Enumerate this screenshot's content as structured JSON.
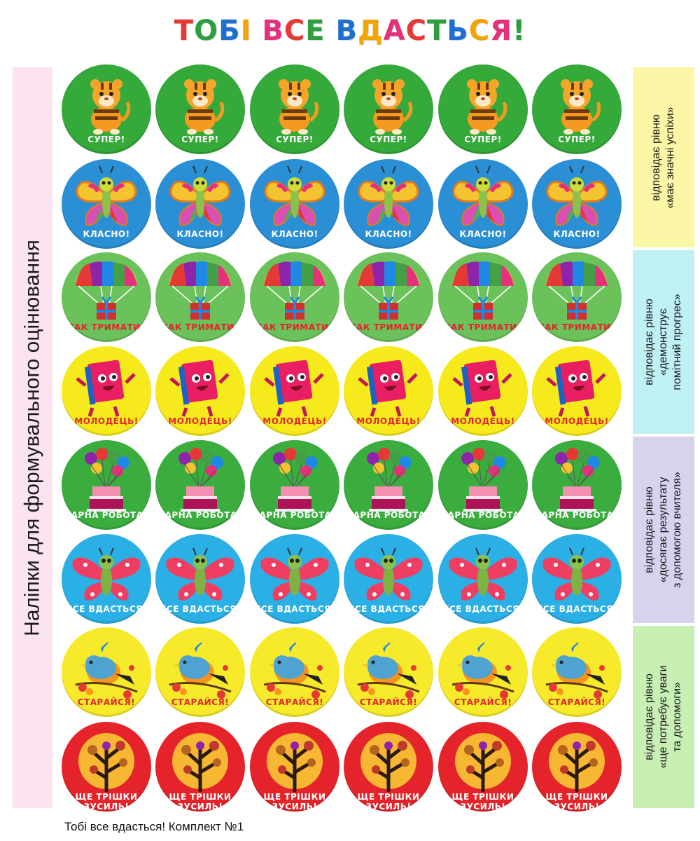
{
  "title": {
    "text": "ТОБІ ВСЕ ВДАСТЬСЯ!",
    "letter_colors": [
      "#e53935",
      "#2e9e3e",
      "#1e6fd0",
      "#f2a400",
      "#e5317a",
      "#e53935",
      "#2e9e3e",
      "#1e6fd0",
      "#f2a400",
      "#e5317a",
      "#e53935",
      "#2e9e3e",
      "#1e6fd0",
      "#f2a400",
      "#e5317a",
      "#2e9e3e",
      "#1e6fd0",
      "#e53935"
    ]
  },
  "left_label": "Наліпки для формувального оцінювання",
  "rows": [
    {
      "caption": "СУПЕР!",
      "bg": "#35a93a",
      "cap_color": "#ffffff",
      "icon": "tiger-icon"
    },
    {
      "caption": "КЛАСНО!",
      "bg": "#2b8fd6",
      "cap_color": "#ffffff",
      "icon": "butterfly-icon"
    },
    {
      "caption": "ТАК ТРИМАТИ!",
      "bg": "#6cc25a",
      "cap_color": "#e0262e",
      "icon": "parachute-gift-icon"
    },
    {
      "caption": "МОЛОДЕЦЬ!",
      "bg": "#f7ea1c",
      "cap_color": "#e0262e",
      "icon": "book-icon"
    },
    {
      "caption": "ГАРНА РОБОТА!",
      "bg": "#3aad3e",
      "cap_color": "#ffffff",
      "icon": "cake-balloons-icon"
    },
    {
      "caption": "УСЕ ВДАСТЬСЯ!",
      "bg": "#2bb0e6",
      "cap_color": "#ffffff",
      "icon": "pink-butterfly-icon"
    },
    {
      "caption": "СТАРАЙСЯ!",
      "bg": "#f7ea2a",
      "cap_color": "#e0262e",
      "icon": "bird-icon"
    },
    {
      "caption": "ЩЕ ТРІШКИ ЗУСИЛЬ!",
      "bg": "#e5232a",
      "cap_color": "#ffffff",
      "icon": "tree-icon"
    }
  ],
  "right_labels": [
    {
      "lines": [
        "відповідає рівню",
        "«має значні успіхи»"
      ],
      "color": "#fcf7a6"
    },
    {
      "lines": [
        "відповідає рівню",
        "«демонструє",
        "помітний прогрес»"
      ],
      "color": "#bff0f4"
    },
    {
      "lines": [
        "відповідає рівню",
        "«досягає результату",
        "з допомогою вчителя»"
      ],
      "color": "#d9d2ee"
    },
    {
      "lines": [
        "відповідає рівню",
        "«ще потребує уваги",
        "та допомоги»"
      ],
      "color": "#c8efb4"
    }
  ],
  "footer": "Тобі все вдасться! Комплект №1",
  "colors": {
    "left_band": "#fbe3ef"
  }
}
